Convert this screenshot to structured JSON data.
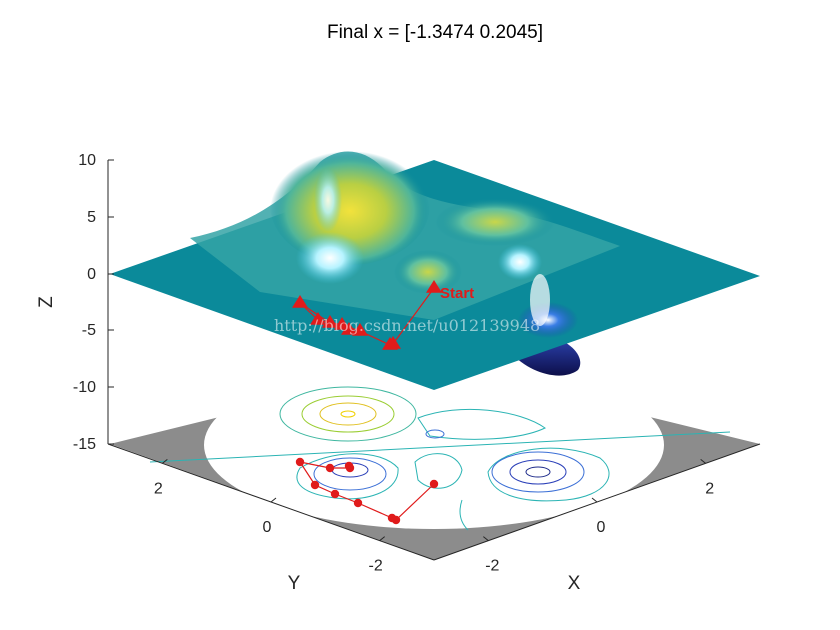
{
  "chart_data": {
    "type": "surface",
    "title": "Final x = [-1.3474 0.2045]",
    "xlabel": "X",
    "ylabel": "Y",
    "zlabel": "Z",
    "x_ticks": [
      "-2",
      "0",
      "2"
    ],
    "y_ticks": [
      "-2",
      "0",
      "2"
    ],
    "z_ticks": [
      "10",
      "5",
      "0",
      "-5",
      "-10",
      "-15"
    ],
    "zlim": [
      -15,
      10
    ],
    "start_label": "Start",
    "watermark": "http://blog.csdn.net/u012139948",
    "colors": {
      "surface_plane": "#0b8a9a",
      "peak_yellow": "#e8d23a",
      "valley_dark": "#1a1a6e",
      "path": "#e01b1b"
    }
  }
}
